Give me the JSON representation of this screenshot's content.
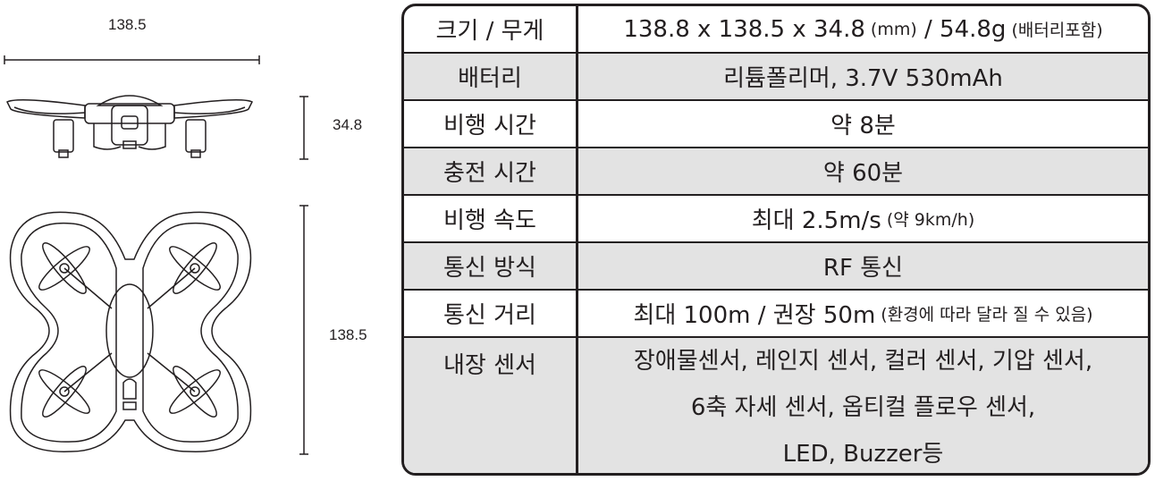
{
  "dimensions": {
    "top_width": "138.5",
    "side_height": "34.8",
    "front_height": "138.5"
  },
  "specs": [
    {
      "label": "크기 / 무게",
      "value": "138.8 x 138.5 x 34.8",
      "unit_note": "(mm)",
      "value2": " / 54.8g",
      "note": "(배터리포함)"
    },
    {
      "label": "배터리",
      "value": "리튬폴리머, 3.7V 530mAh"
    },
    {
      "label": "비행 시간",
      "value": "약 8분"
    },
    {
      "label": "충전 시간",
      "value": "약 60분"
    },
    {
      "label": "비행 속도",
      "value": "최대 2.5m/s",
      "note": "(약 9km/h)"
    },
    {
      "label": "통신 방식",
      "value": "RF 통신"
    },
    {
      "label": "통신 거리",
      "value": "최대 100m / 권장 50m",
      "note": "(환경에 따라 달라 질 수 있음)"
    },
    {
      "label": "내장 센서",
      "lines": [
        "장애물센서, 레인지  센서, 컬러 센서, 기압 센서,",
        "6축 자세 센서, 옵티컬 플로우 센서,",
        "LED, Buzzer등"
      ]
    }
  ],
  "colors": {
    "line": "#231f20",
    "shade": "#e3e3e3"
  }
}
